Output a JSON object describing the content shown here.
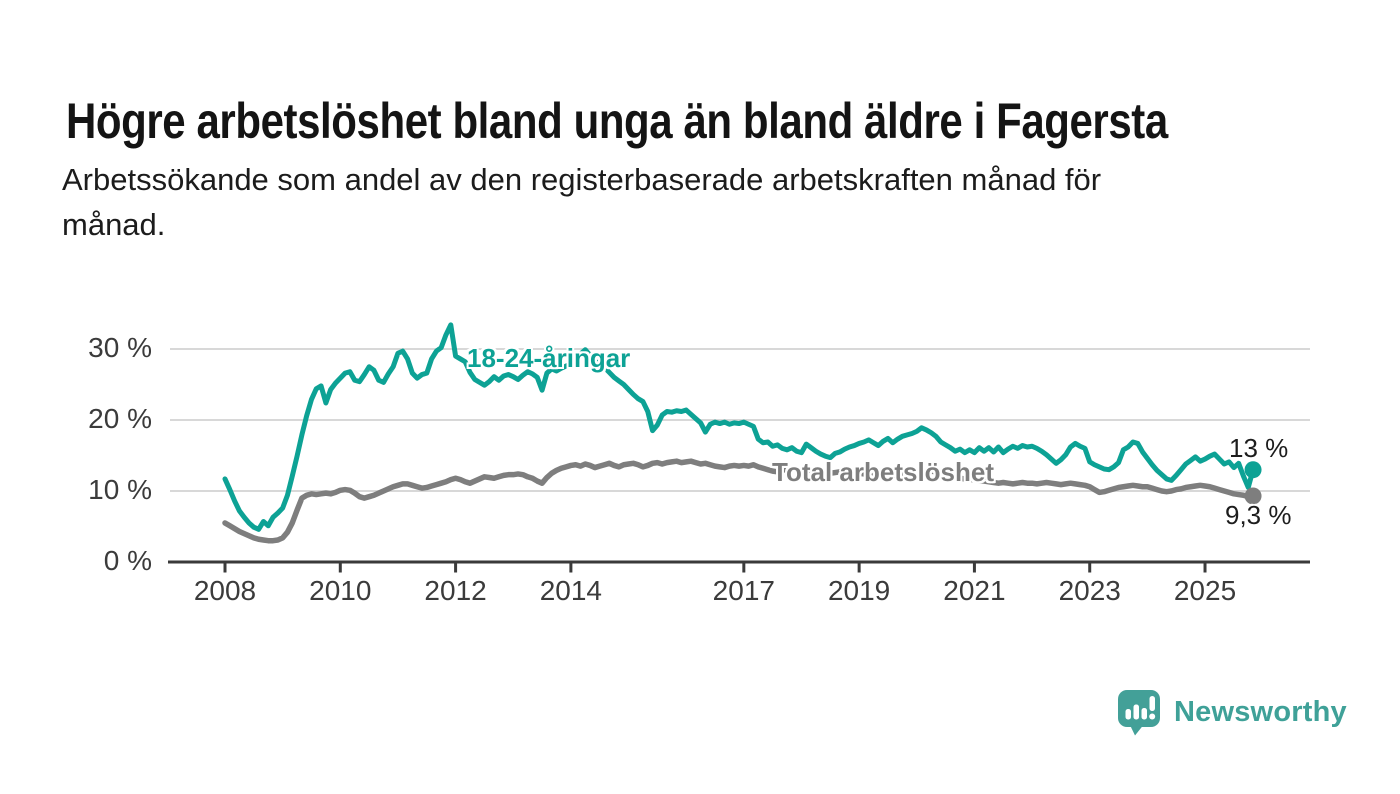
{
  "header": {
    "title": "Högre arbetslöshet bland unga än bland äldre i Fagersta",
    "subtitle_line1": "Arbetssökande som andel av den registerbaserade arbetskraften månad för",
    "subtitle_line2": "månad."
  },
  "footer": {
    "brand": "Newsworthy"
  },
  "colors": {
    "youth_line": "#0da295",
    "total_line": "#7e7e7e",
    "axis": "#3a3a3a",
    "gridline": "#d8d8d8",
    "brand_teal": "#43a098",
    "title_text": "#141414",
    "tick_text": "#3b3b3b"
  },
  "chart_data": {
    "type": "line",
    "title": "Högre arbetslöshet bland unga än bland äldre i Fagersta",
    "subtitle": "Arbetssökande som andel av den registerbaserade arbetskraften månad för månad.",
    "unit": "%",
    "frequency": "monthly",
    "x_start": "2008-01",
    "x_end": "2025-11",
    "x_tick_years": [
      2008,
      2010,
      2012,
      2014,
      2017,
      2019,
      2021,
      2023,
      2025
    ],
    "x_tick_labels": [
      "2008",
      "2010",
      "2012",
      "2014",
      "2017",
      "2019",
      "2021",
      "2023",
      "2025"
    ],
    "y_ticks": [
      0,
      10,
      20,
      30
    ],
    "y_tick_labels": [
      "0 %",
      "10 %",
      "20 %",
      "30 %"
    ],
    "y_tick_suffix": " %",
    "ylim": [
      0,
      35
    ],
    "grid": "horizontal",
    "legend_position": "inline-labels",
    "series": [
      {
        "name": "18-24-åringar",
        "color": "#0da295",
        "end_label": "13 %",
        "end_value": 13.0,
        "values": [
          11.7,
          10.2,
          8.6,
          7.2,
          6.3,
          5.5,
          4.9,
          4.6,
          5.7,
          5.1,
          6.3,
          6.9,
          7.6,
          9.4,
          12.1,
          14.9,
          17.9,
          20.6,
          22.9,
          24.4,
          24.8,
          22.4,
          24.3,
          25.2,
          25.9,
          26.6,
          26.8,
          25.6,
          25.4,
          26.4,
          27.5,
          27.0,
          25.6,
          25.3,
          26.5,
          27.5,
          29.4,
          29.7,
          28.6,
          26.6,
          25.9,
          26.4,
          26.6,
          28.6,
          29.7,
          30.2,
          32.0,
          33.4,
          29.0,
          28.6,
          28.2,
          26.7,
          25.7,
          25.3,
          24.9,
          25.4,
          26.1,
          25.6,
          26.2,
          26.4,
          26.1,
          25.7,
          26.3,
          26.8,
          26.5,
          26.0,
          24.2,
          26.6,
          27.2,
          26.9,
          27.3,
          27.6,
          27.9,
          28.5,
          29.3,
          29.9,
          29.1,
          28.3,
          27.8,
          27.4,
          26.7,
          26.0,
          25.5,
          25.0,
          24.3,
          23.6,
          23.0,
          22.6,
          21.2,
          18.5,
          19.3,
          20.7,
          21.2,
          21.1,
          21.3,
          21.2,
          21.4,
          20.8,
          20.2,
          19.6,
          18.3,
          19.4,
          19.7,
          19.5,
          19.7,
          19.4,
          19.6,
          19.5,
          19.7,
          19.4,
          19.1,
          17.3,
          16.8,
          16.9,
          16.3,
          16.5,
          16.0,
          15.8,
          16.1,
          15.6,
          15.4,
          16.6,
          16.1,
          15.6,
          15.2,
          14.9,
          14.7,
          15.3,
          15.5,
          15.9,
          16.2,
          16.4,
          16.7,
          16.9,
          17.2,
          16.8,
          16.4,
          17.0,
          17.4,
          16.8,
          17.3,
          17.7,
          17.9,
          18.1,
          18.4,
          18.9,
          18.6,
          18.2,
          17.7,
          16.9,
          16.5,
          16.1,
          15.6,
          15.9,
          15.4,
          15.8,
          15.4,
          16.1,
          15.6,
          16.1,
          15.5,
          16.2,
          15.4,
          15.9,
          16.3,
          16.0,
          16.4,
          16.2,
          16.3,
          16.0,
          15.6,
          15.1,
          14.5,
          13.9,
          14.4,
          15.1,
          16.2,
          16.7,
          16.3,
          16.0,
          14.1,
          13.7,
          13.4,
          13.1,
          13.0,
          13.4,
          14.0,
          15.8,
          16.2,
          16.9,
          16.7,
          15.5,
          14.6,
          13.7,
          12.9,
          12.3,
          11.7,
          11.5,
          12.2,
          13.0,
          13.8,
          14.3,
          14.8,
          14.2,
          14.5,
          14.9,
          15.2,
          14.5,
          13.8,
          14.1,
          13.3,
          13.9,
          12.1,
          10.5,
          13.0
        ]
      },
      {
        "name": "Total arbetslöshet",
        "color": "#7e7e7e",
        "end_label": "9,3 %",
        "end_value": 9.3,
        "values": [
          5.5,
          5.1,
          4.7,
          4.3,
          4.0,
          3.7,
          3.4,
          3.2,
          3.1,
          3.0,
          3.0,
          3.1,
          3.4,
          4.2,
          5.5,
          7.3,
          9.0,
          9.4,
          9.6,
          9.5,
          9.6,
          9.7,
          9.6,
          9.8,
          10.1,
          10.2,
          10.1,
          9.7,
          9.2,
          9.0,
          9.2,
          9.4,
          9.7,
          10.0,
          10.3,
          10.6,
          10.8,
          11.0,
          11.0,
          10.8,
          10.6,
          10.4,
          10.5,
          10.7,
          10.9,
          11.1,
          11.3,
          11.6,
          11.8,
          11.6,
          11.3,
          11.1,
          11.4,
          11.7,
          12.0,
          11.9,
          11.8,
          12.0,
          12.2,
          12.3,
          12.3,
          12.4,
          12.3,
          12.0,
          11.8,
          11.4,
          11.1,
          11.9,
          12.5,
          12.9,
          13.2,
          13.4,
          13.6,
          13.7,
          13.5,
          13.8,
          13.6,
          13.3,
          13.5,
          13.7,
          13.9,
          13.6,
          13.4,
          13.7,
          13.8,
          13.9,
          13.7,
          13.4,
          13.6,
          13.9,
          14.0,
          13.8,
          14.0,
          14.1,
          14.2,
          14.0,
          14.1,
          14.2,
          14.0,
          13.8,
          13.9,
          13.7,
          13.5,
          13.4,
          13.3,
          13.5,
          13.6,
          13.5,
          13.6,
          13.5,
          13.7,
          13.4,
          13.2,
          13.0,
          12.8,
          12.7,
          12.9,
          13.1,
          13.2,
          13.0,
          12.9,
          12.8,
          12.9,
          13.0,
          12.8,
          12.6,
          12.5,
          12.6,
          12.7,
          12.5,
          12.4,
          12.5,
          12.5,
          12.4,
          12.3,
          12.4,
          12.5,
          12.4,
          12.3,
          12.2,
          12.1,
          12.2,
          12.1,
          12.0,
          12.0,
          12.2,
          12.5,
          12.8,
          12.7,
          12.5,
          12.3,
          12.1,
          11.9,
          11.8,
          11.7,
          11.6,
          11.6,
          11.5,
          11.4,
          11.3,
          11.2,
          11.1,
          11.2,
          11.1,
          11.0,
          11.1,
          11.2,
          11.1,
          11.1,
          11.0,
          11.1,
          11.2,
          11.1,
          11.0,
          10.9,
          11.0,
          11.1,
          11.0,
          10.9,
          10.8,
          10.6,
          10.2,
          9.8,
          9.9,
          10.1,
          10.3,
          10.5,
          10.6,
          10.7,
          10.8,
          10.7,
          10.6,
          10.6,
          10.4,
          10.2,
          10.0,
          9.9,
          10.0,
          10.2,
          10.3,
          10.5,
          10.6,
          10.7,
          10.8,
          10.7,
          10.6,
          10.4,
          10.2,
          10.0,
          9.8,
          9.6,
          9.5,
          9.4,
          9.2,
          9.3
        ]
      }
    ]
  }
}
